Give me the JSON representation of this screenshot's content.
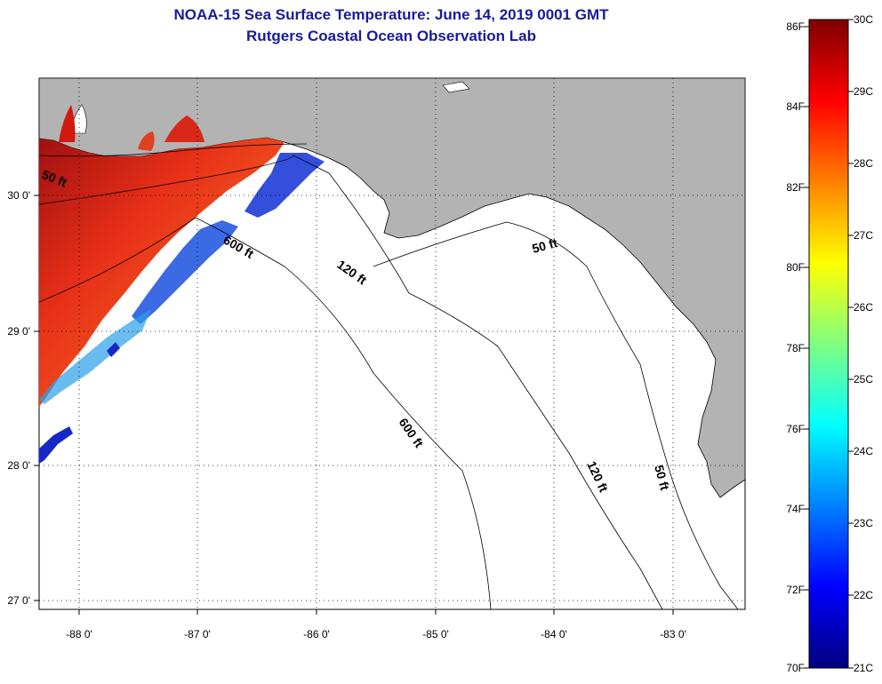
{
  "title": {
    "line1": "NOAA-15 Sea Surface Temperature:  June 14, 2019 0001 GMT",
    "line2": "Rutgers Coastal Ocean Observation Lab"
  },
  "axes": {
    "x_ticks": [
      "-88 0'",
      "-87 0'",
      "-86 0'",
      "-85 0'",
      "-84 0'",
      "-83 0'"
    ],
    "y_ticks": [
      "30 0'",
      "29 0'",
      "28 0'",
      "27 0'"
    ]
  },
  "contours": {
    "c50_west": "50 ft",
    "c50_east": "50 ft",
    "c50_south": "50 ft",
    "c120_a": "120 ft",
    "c120_b": "120 ft",
    "c600_a": "600 ft",
    "c600_b": "600 ft"
  },
  "colorbar": {
    "fahrenheit": [
      "86F",
      "84F",
      "82F",
      "80F",
      "78F",
      "76F",
      "74F",
      "72F",
      "70F"
    ],
    "celsius": [
      "30C",
      "29C",
      "28C",
      "27C",
      "26C",
      "25C",
      "24C",
      "23C",
      "22C",
      "21C"
    ]
  },
  "colors": {
    "land": "#b3b3b3",
    "title": "#1a1a9c",
    "warm": "#e8401e",
    "cold": "#1428c8"
  }
}
